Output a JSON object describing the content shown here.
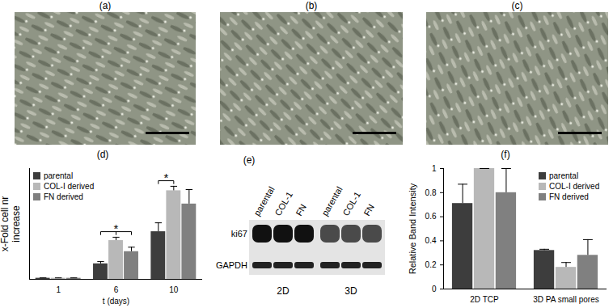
{
  "micrographs": [
    "(a)",
    "(b)",
    "(c)"
  ],
  "blot": {
    "title": "(e)",
    "lanes": [
      "parental",
      "COL-1",
      "FN",
      "parental",
      "COL-1",
      "FN"
    ],
    "rows": [
      "ki67",
      "GAPDH"
    ],
    "groups": [
      "2D",
      "3D"
    ]
  },
  "chart_data": [
    {
      "type": "bar",
      "title": "(d)",
      "x_label": "t (days)",
      "y_label": "x-Fold cell nr increase",
      "categories": [
        "1",
        "6",
        "10"
      ],
      "series": [
        {
          "name": "parental",
          "color": "#3d3d3d",
          "values": [
            1,
            14,
            43
          ],
          "errors": [
            0.3,
            2,
            8
          ]
        },
        {
          "name": "COL-I derived",
          "color": "#b8b8b8",
          "values": [
            1,
            35,
            80
          ],
          "errors": [
            0.3,
            3,
            4
          ]
        },
        {
          "name": "FN derived",
          "color": "#808080",
          "values": [
            1,
            25,
            68
          ],
          "errors": [
            0.3,
            4,
            13
          ]
        }
      ],
      "ylim": [
        0,
        100
      ],
      "tick_labels": "x",
      "legend": "upper left",
      "annotations": [
        {
          "text": "*",
          "category": "6",
          "from": "parental",
          "to": [
            "COL-I derived",
            "FN derived"
          ]
        },
        {
          "text": "*",
          "category": "10",
          "from": "parental",
          "to": [
            "COL-I derived"
          ]
        }
      ]
    },
    {
      "type": "bar",
      "title": "(f)",
      "y_label": "Relative Band Intensity",
      "categories": [
        "2D TCP",
        "3D PA small pores"
      ],
      "series": [
        {
          "name": "parental",
          "color": "#3d3d3d",
          "values": [
            0.71,
            0.32
          ],
          "errors": [
            0.16,
            0.01
          ]
        },
        {
          "name": "COL-I derived",
          "color": "#b8b8b8",
          "values": [
            1,
            0.18
          ],
          "errors": [
            0,
            0.04
          ]
        },
        {
          "name": "FN derived",
          "color": "#808080",
          "values": [
            0.8,
            0.28
          ],
          "errors": [
            0.2,
            0.13
          ]
        }
      ],
      "ylim": [
        0,
        1
      ],
      "yticks": [
        0,
        0.2,
        0.4,
        0.6,
        0.8,
        1
      ],
      "legend": "upper right"
    }
  ]
}
